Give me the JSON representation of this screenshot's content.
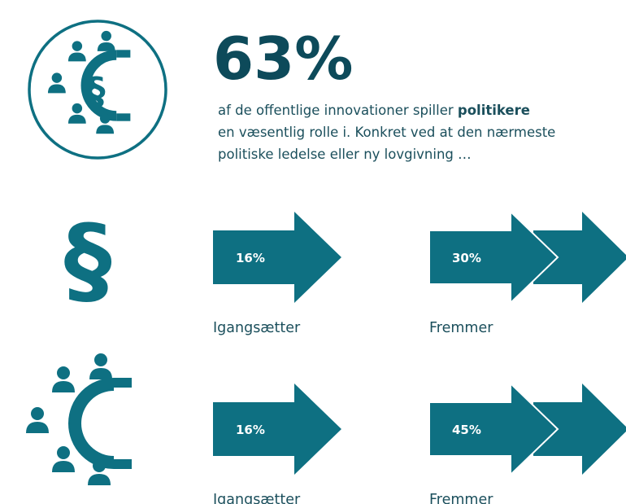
{
  "headline": {
    "value": "63%",
    "lines": [
      "af de offentlige innovationer spiller",
      "politikere",
      "en væsentlig rolle i. Konkret ved at den nærmeste",
      "politiske ledelse eller ny lovgivning …"
    ]
  },
  "circle_icon": "§",
  "rows": [
    {
      "icon": "§",
      "items": [
        {
          "value": "16%",
          "label": "Igangsætter"
        },
        {
          "value": "30%",
          "label": "Fremmer"
        }
      ]
    },
    {
      "items": [
        {
          "value": "16%",
          "label": "Igangsætter"
        },
        {
          "value": "45%",
          "label": "Fremmer"
        }
      ]
    }
  ]
}
